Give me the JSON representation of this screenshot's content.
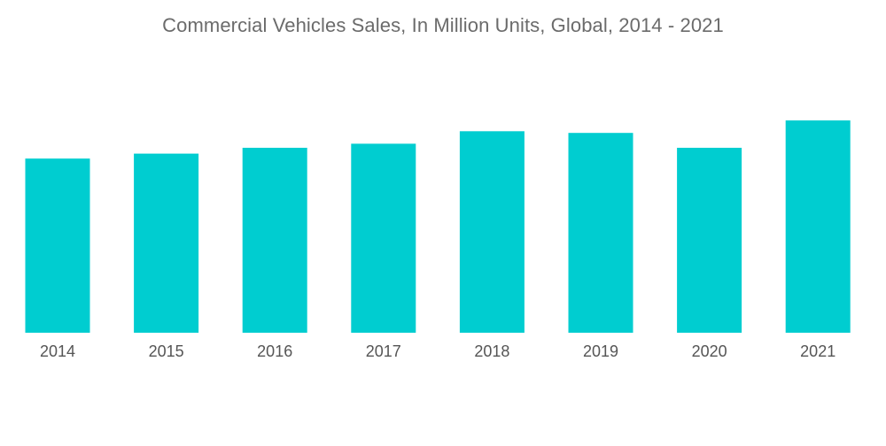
{
  "chart_data": {
    "type": "bar",
    "title": "Commercial Vehicles Sales, In Million Units, Global, 2014 - 2021",
    "categories": [
      "2014",
      "2015",
      "2016",
      "2017",
      "2018",
      "2019",
      "2020",
      "2021"
    ],
    "values": [
      21.0,
      21.6,
      22.3,
      22.8,
      24.3,
      24.1,
      22.3,
      25.6
    ],
    "xlabel": "",
    "ylabel": "",
    "ylim": [
      0,
      27
    ],
    "grid": false,
    "legend": "none",
    "bar_color": "#00cdd0"
  }
}
